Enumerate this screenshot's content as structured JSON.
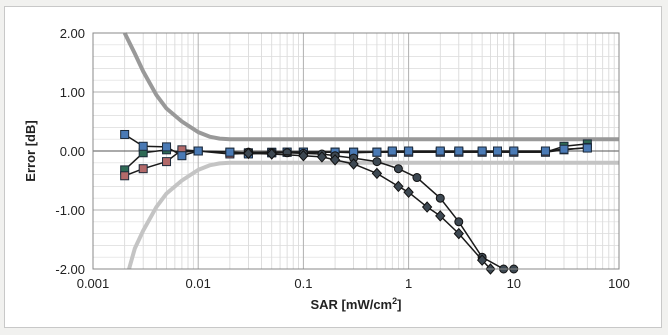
{
  "chart_data": {
    "type": "scatter",
    "x_scale": "log",
    "xlim": [
      0.001,
      100
    ],
    "ylim": [
      -2.0,
      2.0
    ],
    "grid": true,
    "x_ticks": [
      "0.001",
      "0.01",
      "0.1",
      "1",
      "10",
      "100"
    ],
    "y_ticks": [
      "2.00",
      "1.00",
      "0.00",
      "-1.00",
      "-2.00"
    ],
    "xlabel_main": "SAR [mW/cm",
    "xlabel_sup": "2",
    "xlabel_end": "]",
    "ylabel": "Error [dB]",
    "series": [
      {
        "kind": "upper-limit-band",
        "color": "#999999",
        "marker": "none",
        "x": [
          0.002,
          0.0025,
          0.003,
          0.004,
          0.005,
          0.007,
          0.01,
          0.013,
          0.016,
          0.02,
          0.05,
          1,
          100
        ],
        "y": [
          2.0,
          1.65,
          1.35,
          0.95,
          0.72,
          0.5,
          0.32,
          0.24,
          0.21,
          0.2,
          0.2,
          0.2,
          0.2
        ]
      },
      {
        "kind": "lower-limit-band",
        "color": "#c4c4c4",
        "marker": "none",
        "x": [
          0.0022,
          0.0025,
          0.003,
          0.004,
          0.005,
          0.007,
          0.01,
          0.013,
          0.016,
          0.02,
          0.05,
          1,
          100
        ],
        "y": [
          -2.0,
          -1.65,
          -1.35,
          -0.95,
          -0.72,
          -0.5,
          -0.32,
          -0.24,
          -0.21,
          -0.2,
          -0.2,
          -0.2,
          -0.2
        ]
      },
      {
        "kind": "curve",
        "color": "#2f6a55",
        "marker": "square",
        "x": [
          0.002,
          0.003,
          0.005,
          0.007,
          0.01,
          0.02,
          0.03,
          0.05,
          0.07,
          0.1,
          0.2,
          0.3,
          0.5,
          0.7,
          1,
          2,
          3,
          5,
          7,
          10,
          20,
          30,
          50
        ],
        "y": [
          -0.32,
          -0.03,
          0.02,
          -0.02,
          0.0,
          -0.02,
          -0.03,
          -0.02,
          -0.02,
          -0.02,
          -0.02,
          -0.03,
          -0.02,
          -0.02,
          -0.02,
          -0.02,
          -0.02,
          -0.02,
          -0.02,
          -0.02,
          -0.02,
          0.08,
          0.12
        ]
      },
      {
        "kind": "curve",
        "color": "#b36a6a",
        "marker": "square",
        "x": [
          0.002,
          0.003,
          0.005,
          0.007,
          0.01,
          0.02,
          0.03,
          0.05,
          0.07,
          0.1,
          0.2,
          0.3,
          0.5,
          0.7,
          1,
          2,
          3,
          5,
          7,
          10,
          20,
          30,
          50
        ],
        "y": [
          -0.42,
          -0.3,
          -0.18,
          0.02,
          0.0,
          -0.05,
          -0.04,
          -0.03,
          -0.02,
          -0.02,
          -0.02,
          -0.02,
          -0.02,
          -0.02,
          -0.02,
          -0.02,
          -0.02,
          -0.02,
          -0.02,
          -0.02,
          -0.02,
          0.02,
          0.06
        ]
      },
      {
        "kind": "curve",
        "color": "#4a7ab5",
        "marker": "square",
        "x": [
          0.002,
          0.003,
          0.005,
          0.007,
          0.01,
          0.02,
          0.03,
          0.05,
          0.07,
          0.1,
          0.2,
          0.3,
          0.5,
          0.7,
          1,
          2,
          3,
          5,
          7,
          10,
          20,
          30,
          50
        ],
        "y": [
          0.28,
          0.08,
          0.07,
          -0.08,
          0.0,
          -0.02,
          -0.05,
          -0.03,
          -0.02,
          -0.02,
          -0.02,
          -0.02,
          -0.02,
          0.0,
          0.0,
          0.0,
          0.0,
          0.0,
          0.0,
          0.0,
          0.0,
          0.03,
          0.05
        ]
      },
      {
        "kind": "curve",
        "color": "#3d4852",
        "marker": "circle",
        "x": [
          0.03,
          0.05,
          0.07,
          0.1,
          0.15,
          0.2,
          0.3,
          0.5,
          0.8,
          1.2,
          2,
          3,
          5,
          8,
          10
        ],
        "y": [
          -0.02,
          -0.03,
          -0.03,
          -0.04,
          -0.05,
          -0.08,
          -0.12,
          -0.18,
          -0.3,
          -0.45,
          -0.8,
          -1.2,
          -1.8,
          -2.0,
          -2.0
        ]
      },
      {
        "kind": "curve",
        "color": "#3d4852",
        "marker": "diamond",
        "x": [
          0.03,
          0.05,
          0.1,
          0.15,
          0.2,
          0.3,
          0.5,
          0.8,
          1,
          1.5,
          2,
          3,
          5,
          6
        ],
        "y": [
          -0.04,
          -0.05,
          -0.08,
          -0.1,
          -0.15,
          -0.22,
          -0.38,
          -0.6,
          -0.7,
          -0.95,
          -1.1,
          -1.4,
          -1.85,
          -2.0
        ]
      }
    ]
  }
}
